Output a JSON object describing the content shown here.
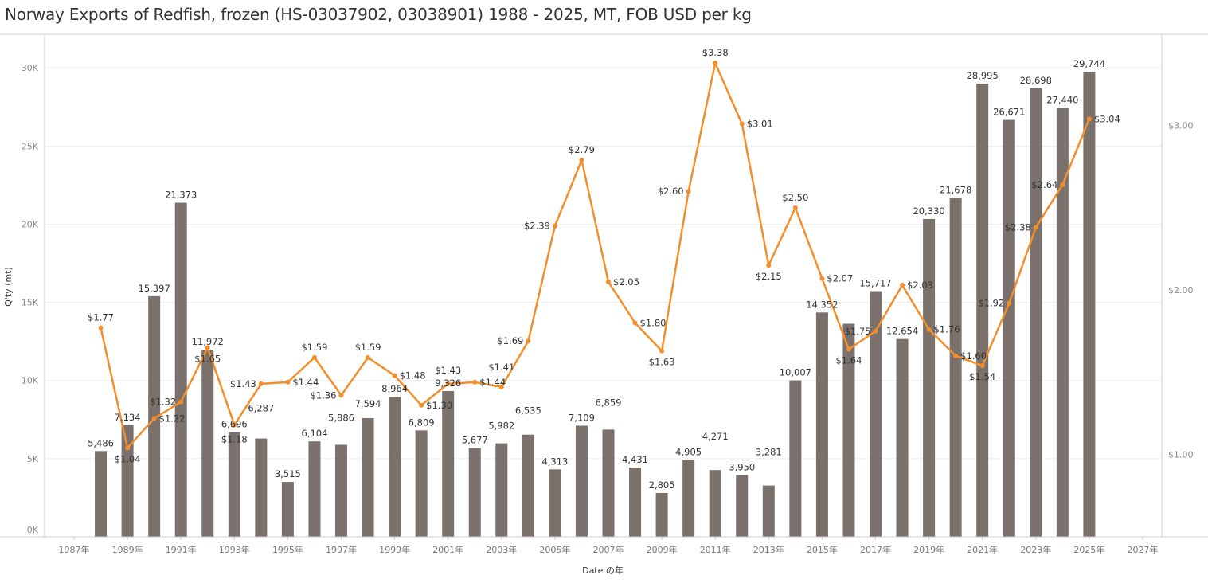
{
  "title": "Norway Exports of Redfish, frozen (HS-03037902, 03038901) 1988 - 2025, MT, FOB USD per kg",
  "chart_data": {
    "type": "bar+line",
    "title": "Norway Exports of Redfish, frozen (HS-03037902, 03038901) 1988 - 2025, MT, FOB USD per kg",
    "xlabel": "Date の年",
    "ylabel": "Q'ty (mt)",
    "y2label": "",
    "x_ticks": [
      "1987年",
      "1989年",
      "1991年",
      "1993年",
      "1995年",
      "1997年",
      "1999年",
      "2001年",
      "2003年",
      "2005年",
      "2007年",
      "2009年",
      "2011年",
      "2013年",
      "2015年",
      "2017年",
      "2019年",
      "2021年",
      "2023年",
      "2025年",
      "2027年"
    ],
    "y_ticks": [
      "0K",
      "5K",
      "10K",
      "15K",
      "20K",
      "25K",
      "30K"
    ],
    "y2_ticks": [
      "$1.00",
      "$2.00",
      "$3.00"
    ],
    "xlim": [
      1987,
      2027
    ],
    "ylim": [
      0,
      32100
    ],
    "y2lim": [
      0.5,
      3.55
    ],
    "grid": true,
    "colors": {
      "bar": "#7a706c",
      "line": "#f28e2b"
    },
    "years": [
      1988,
      1989,
      1990,
      1991,
      1992,
      1993,
      1994,
      1995,
      1996,
      1997,
      1998,
      1999,
      2000,
      2001,
      2002,
      2003,
      2004,
      2005,
      2006,
      2007,
      2008,
      2009,
      2010,
      2011,
      2012,
      2013,
      2014,
      2015,
      2016,
      2017,
      2018,
      2019,
      2020,
      2021,
      2022,
      2023,
      2024,
      2025
    ],
    "quantity": [
      5486,
      7134,
      15397,
      21373,
      11972,
      6696,
      6287,
      3515,
      6104,
      5886,
      7594,
      8964,
      6809,
      9326,
      5677,
      5982,
      6535,
      4313,
      7109,
      6859,
      4431,
      2805,
      4905,
      4271,
      3950,
      3281,
      10007,
      14352,
      13630,
      15717,
      12654,
      20330,
      21678,
      28995,
      26671,
      28698,
      27440,
      29744
    ],
    "quantity_labels": [
      "5,486",
      "7,134",
      "15,397",
      "21,373",
      "11,972",
      "6,696",
      "6,287",
      "3,515",
      "6,104",
      "5,886",
      "7,594",
      "8,964",
      "6,809",
      "9,326",
      "5,677",
      "5,982",
      "6,535",
      "4,313",
      "7,109",
      "6,859",
      "4,431",
      "2,805",
      "4,905",
      "4,271",
      "3,950",
      "3,281",
      "10,007",
      "14,352",
      "",
      "15,717",
      "12,654",
      "20,330",
      "21,678",
      "28,995",
      "26,671",
      "28,698",
      "27,440",
      "29,744"
    ],
    "price": [
      1.77,
      1.04,
      1.22,
      1.32,
      1.65,
      1.18,
      1.43,
      1.44,
      1.59,
      1.36,
      1.59,
      1.48,
      1.3,
      1.43,
      1.44,
      1.41,
      1.69,
      2.39,
      2.79,
      2.05,
      1.8,
      1.63,
      2.6,
      3.38,
      3.01,
      2.15,
      2.5,
      2.07,
      1.64,
      1.75,
      2.03,
      1.76,
      1.6,
      1.54,
      1.92,
      2.38,
      2.64,
      3.04
    ],
    "price_labels": [
      "$1.77",
      "$1.04",
      "$1.22",
      "$1.32",
      "$1.65",
      "$1.18",
      "$1.43",
      "$1.44",
      "$1.59",
      "$1.36",
      "$1.59",
      "$1.48",
      "$1.30",
      "$1.43",
      "$1.44",
      "$1.41",
      "$1.69",
      "$2.39",
      "$2.79",
      "$2.05",
      "$1.80",
      "$1.63",
      "$2.60",
      "$3.38",
      "$3.01",
      "$2.15",
      "$2.50",
      "$2.07",
      "$1.64",
      "$1.75",
      "$2.03",
      "$1.76",
      "$1.60",
      "$1.54",
      "$1.92",
      "$2.38",
      "$2.64",
      "$3.04"
    ]
  }
}
